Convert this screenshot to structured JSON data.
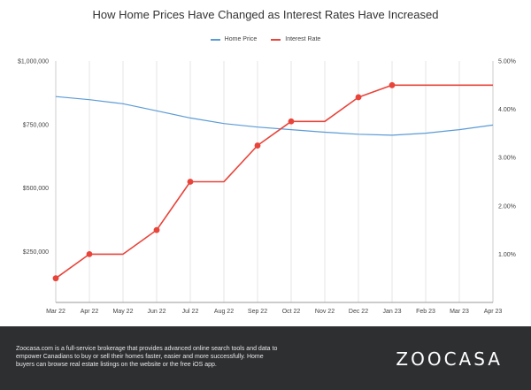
{
  "chart_data": {
    "type": "line",
    "title": "How Home Prices Have Changed as Interest Rates Have Increased",
    "categories": [
      "Mar 22",
      "Apr 22",
      "May 22",
      "Jun 22",
      "Jul 22",
      "Aug 22",
      "Sep 22",
      "Oct 22",
      "Nov 22",
      "Dec 22",
      "Jan 23",
      "Feb 23",
      "Mar 23",
      "Apr 23"
    ],
    "series": [
      {
        "name": "Home Price",
        "axis": "left",
        "color": "#5b9bd5",
        "values": [
          860000,
          848000,
          832000,
          804000,
          776000,
          754000,
          740000,
          730000,
          720000,
          712000,
          708000,
          716000,
          730000,
          748000
        ]
      },
      {
        "name": "Interest Rate",
        "axis": "right",
        "color": "#e8443a",
        "markers": true,
        "values": [
          0.5,
          1.0,
          1.0,
          1.5,
          2.5,
          2.5,
          3.25,
          3.75,
          3.75,
          4.25,
          4.5,
          4.5,
          4.5,
          4.5
        ]
      }
    ],
    "y_left": {
      "min": 50000,
      "max": 1000000,
      "ticks": [
        250000,
        500000,
        750000,
        1000000
      ],
      "tick_labels": [
        "$250,000",
        "$500,000",
        "$750,000",
        "$1,000,000"
      ]
    },
    "y_right": {
      "min": 0,
      "max": 5,
      "ticks": [
        1,
        2,
        3,
        4,
        5
      ],
      "tick_labels": [
        "1.00%",
        "2.00%",
        "3.00%",
        "4.00%",
        "5.00%"
      ]
    },
    "grid": "vertical",
    "legend": "top-center"
  },
  "footer": {
    "text": "Zoocasa.com is a full-service brokerage that provides advanced online search tools and data to empower Canadians to buy or sell their homes faster, easier and more successfully. Home buyers can browse real estate listings on the website or the free iOS app.",
    "logo": "ZOOCASA"
  }
}
